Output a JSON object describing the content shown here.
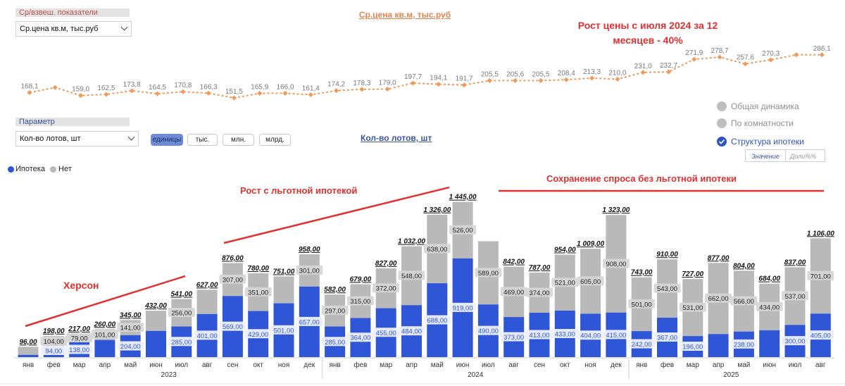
{
  "price_selector": {
    "label": "Ср/взвеш. показатели",
    "value": "Ср.цена кв.м, тыс.руб"
  },
  "price_chart_title": "Ср.цена кв.м, тыс.руб",
  "param_selector": {
    "label": "Параметр",
    "value": "Кол-во лотов, шт"
  },
  "unit_buttons": [
    {
      "label": "единицы",
      "active": true
    },
    {
      "label": "тыс.",
      "active": false
    },
    {
      "label": "млн.",
      "active": false
    },
    {
      "label": "млрд.",
      "active": false
    }
  ],
  "lots_chart_title": "Кол-во лотов, шт",
  "view_options": [
    {
      "label": "Общая динамика",
      "selected": false
    },
    {
      "label": "По комнатности",
      "selected": false
    },
    {
      "label": "Структура ипотеки",
      "selected": true
    }
  ],
  "value_toggle": [
    "Значение",
    "Доли%%"
  ],
  "legend": [
    {
      "label": "Ипотека",
      "color": "#2f56d6"
    },
    {
      "label": "Нет",
      "color": "#b9b9b9"
    }
  ],
  "annotations": {
    "price_growth": [
      "Рост цены с июля 2024 за 12",
      "месяцев - 40%"
    ],
    "kherson": "Херсон",
    "growth_preferential": "Рост с льготной ипотекой",
    "demand_kept": "Сохранение спроса без льготной ипотеки"
  },
  "colors": {
    "price_line": "#f09a5a",
    "price_label": "#7a7a7a",
    "mortgage": "#2f56d6",
    "no_mortgage": "#b9b9b9",
    "annotation": "#e03030"
  },
  "chart_data": [
    {
      "type": "line",
      "title": "Ср.цена кв.м, тыс.руб",
      "x": [
        "янв 2023",
        "фев 2023",
        "мар 2023",
        "апр 2023",
        "май 2023",
        "июн 2023",
        "июл 2023",
        "авг 2023",
        "сен 2023",
        "окт 2023",
        "ноя 2023",
        "дек 2023",
        "янв 2024",
        "фев 2024",
        "мар 2024",
        "апр 2024",
        "май 2024",
        "июн 2024",
        "июл 2024",
        "авг 2024",
        "сен 2024",
        "окт 2024",
        "ноя 2024",
        "дек 2024",
        "янв 2025",
        "фев 2025",
        "мар 2025",
        "апр 2025",
        "май 2025",
        "июн 2025",
        "июл 2025",
        "авг 2025"
      ],
      "values": [
        168.1,
        184.0,
        159.0,
        162.5,
        173.8,
        164.5,
        170.8,
        166.3,
        151.5,
        165.9,
        166.0,
        161.4,
        174.2,
        178.3,
        179.0,
        197.7,
        194.1,
        191.7,
        205.5,
        205.6,
        205.5,
        208.4,
        213.3,
        210.0,
        231.0,
        232.7,
        271.9,
        278.7,
        257.6,
        270.3,
        286.1,
        286.1
      ],
      "labels": [
        "168,1",
        "",
        "159,0",
        "162,5",
        "173,8",
        "164,5",
        "170,8",
        "166,3",
        "151,5",
        "165,9",
        "166,0",
        "161,4",
        "174,2",
        "178,3",
        "179,0",
        "197,7",
        "194,1",
        "191,7",
        "205,5",
        "205,6",
        "205,5",
        "208,4",
        "213,3",
        "210,0",
        "231,0",
        "232,7",
        "271,9",
        "278,7",
        "257,6",
        "270,3",
        "",
        "286,1"
      ],
      "grid": false,
      "legend": "none"
    },
    {
      "type": "bar",
      "stacked": true,
      "title": "Кол-во лотов, шт",
      "month_labels": [
        "янв",
        "фев",
        "мар",
        "апр",
        "май",
        "июн",
        "июл",
        "авг",
        "сен",
        "окт",
        "ноя",
        "дек",
        "янв",
        "фев",
        "мар",
        "апр",
        "май",
        "июн",
        "июл",
        "авг",
        "сен",
        "окт",
        "ноя",
        "дек",
        "янв",
        "фев",
        "мар",
        "апр",
        "май",
        "июн",
        "июл",
        "авг"
      ],
      "year_groups": [
        {
          "label": "2023",
          "start": 0,
          "end": 11
        },
        {
          "label": "2024",
          "start": 12,
          "end": 23
        },
        {
          "label": "2025",
          "start": 24,
          "end": 31
        }
      ],
      "series": [
        {
          "name": "Ипотека",
          "values": [
            21,
            94,
            138,
            159,
            204,
            244,
            285,
            401,
            569,
            429,
            501,
            657,
            285,
            364,
            455,
            484,
            688,
            919,
            490,
            373,
            413,
            433,
            404,
            415,
            242,
            367,
            196,
            215,
            238,
            250,
            300,
            405
          ],
          "labels": [
            "",
            "94,00",
            "138,00",
            "",
            "204,00",
            "",
            "285,00",
            "401,00",
            "569,00",
            "429,00",
            "501,00",
            "657,00",
            "285,00",
            "364,00",
            "455,00",
            "484,00",
            "688,00",
            "919,00",
            "490,00",
            "373,00",
            "413,00",
            "433,00",
            "404,00",
            "415,00",
            "242,00",
            "367,00",
            "196,00",
            "",
            "238,00",
            "",
            "300,00",
            "405,00"
          ]
        },
        {
          "name": "Нет",
          "values": [
            75,
            104,
            79,
            101,
            141,
            188,
            256,
            226,
            307,
            351,
            250,
            301,
            297,
            315,
            372,
            548,
            638,
            526,
            589,
            469,
            374,
            521,
            605,
            908,
            501,
            543,
            531,
            662,
            566,
            434,
            537,
            701
          ],
          "labels": [
            "",
            "104,00",
            "79,00",
            "101,00",
            "141,00",
            "",
            "256,00",
            "",
            "307,00",
            "351,00",
            "",
            "301,00",
            "297,00",
            "315,00",
            "372,00",
            "548,00",
            "638,00",
            "526,00",
            "589,00",
            "469,00",
            "374,00",
            "521,00",
            "605,00",
            "908,00",
            "501,00",
            "543,00",
            "531,00",
            "662,00",
            "566,00",
            "434,00",
            "537,00",
            "701,00"
          ]
        }
      ],
      "totals": [
        96,
        198,
        217,
        260,
        345,
        432,
        541,
        627,
        876,
        780,
        751,
        958,
        582,
        679,
        827,
        1032,
        1326,
        1445,
        1079,
        842,
        787,
        954,
        1009,
        1323,
        743,
        910,
        727,
        877,
        804,
        684,
        837,
        1106
      ],
      "total_labels": [
        "96,00",
        "198,00",
        "217,00",
        "260,00",
        "345,00",
        "432,00",
        "541,00",
        "627,00",
        "876,00",
        "780,00",
        "751,00",
        "958,00",
        "582,00",
        "679,00",
        "827,00",
        "1 032,00",
        "1 326,00",
        "1 445,00",
        "",
        "842,00",
        "787,00",
        "954,00",
        "1 009,00",
        "1 323,00",
        "743,00",
        "910,00",
        "727,00",
        "877,00",
        "804,00",
        "684,00",
        "837,00",
        "1 106,00"
      ],
      "legend": "top-left"
    }
  ]
}
